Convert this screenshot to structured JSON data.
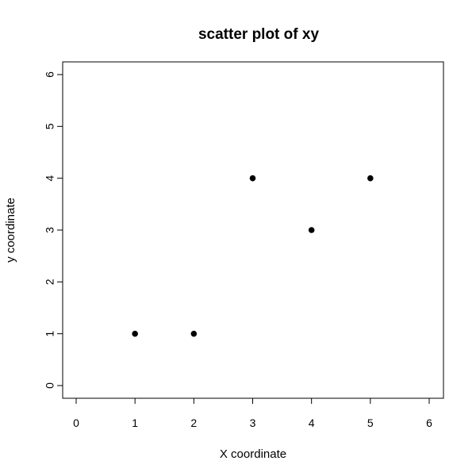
{
  "chart_data": {
    "type": "scatter",
    "title": "scatter plot of xy",
    "xlabel": "X coordinate",
    "ylabel": "y coordinate",
    "xlim": [
      0,
      6
    ],
    "ylim": [
      0,
      6
    ],
    "x_ticks": [
      0,
      1,
      2,
      3,
      4,
      5,
      6
    ],
    "y_ticks": [
      0,
      1,
      2,
      3,
      4,
      5,
      6
    ],
    "x_tick_labels": [
      "0",
      "1",
      "2",
      "3",
      "4",
      "5",
      "6"
    ],
    "y_tick_labels": [
      "0",
      "1",
      "2",
      "3",
      "4",
      "5",
      "6"
    ],
    "grid": false,
    "legend": "none",
    "point_color": "#000000",
    "points": [
      {
        "x": 1,
        "y": 1
      },
      {
        "x": 2,
        "y": 1
      },
      {
        "x": 3,
        "y": 4
      },
      {
        "x": 4,
        "y": 3
      },
      {
        "x": 5,
        "y": 4
      }
    ]
  }
}
